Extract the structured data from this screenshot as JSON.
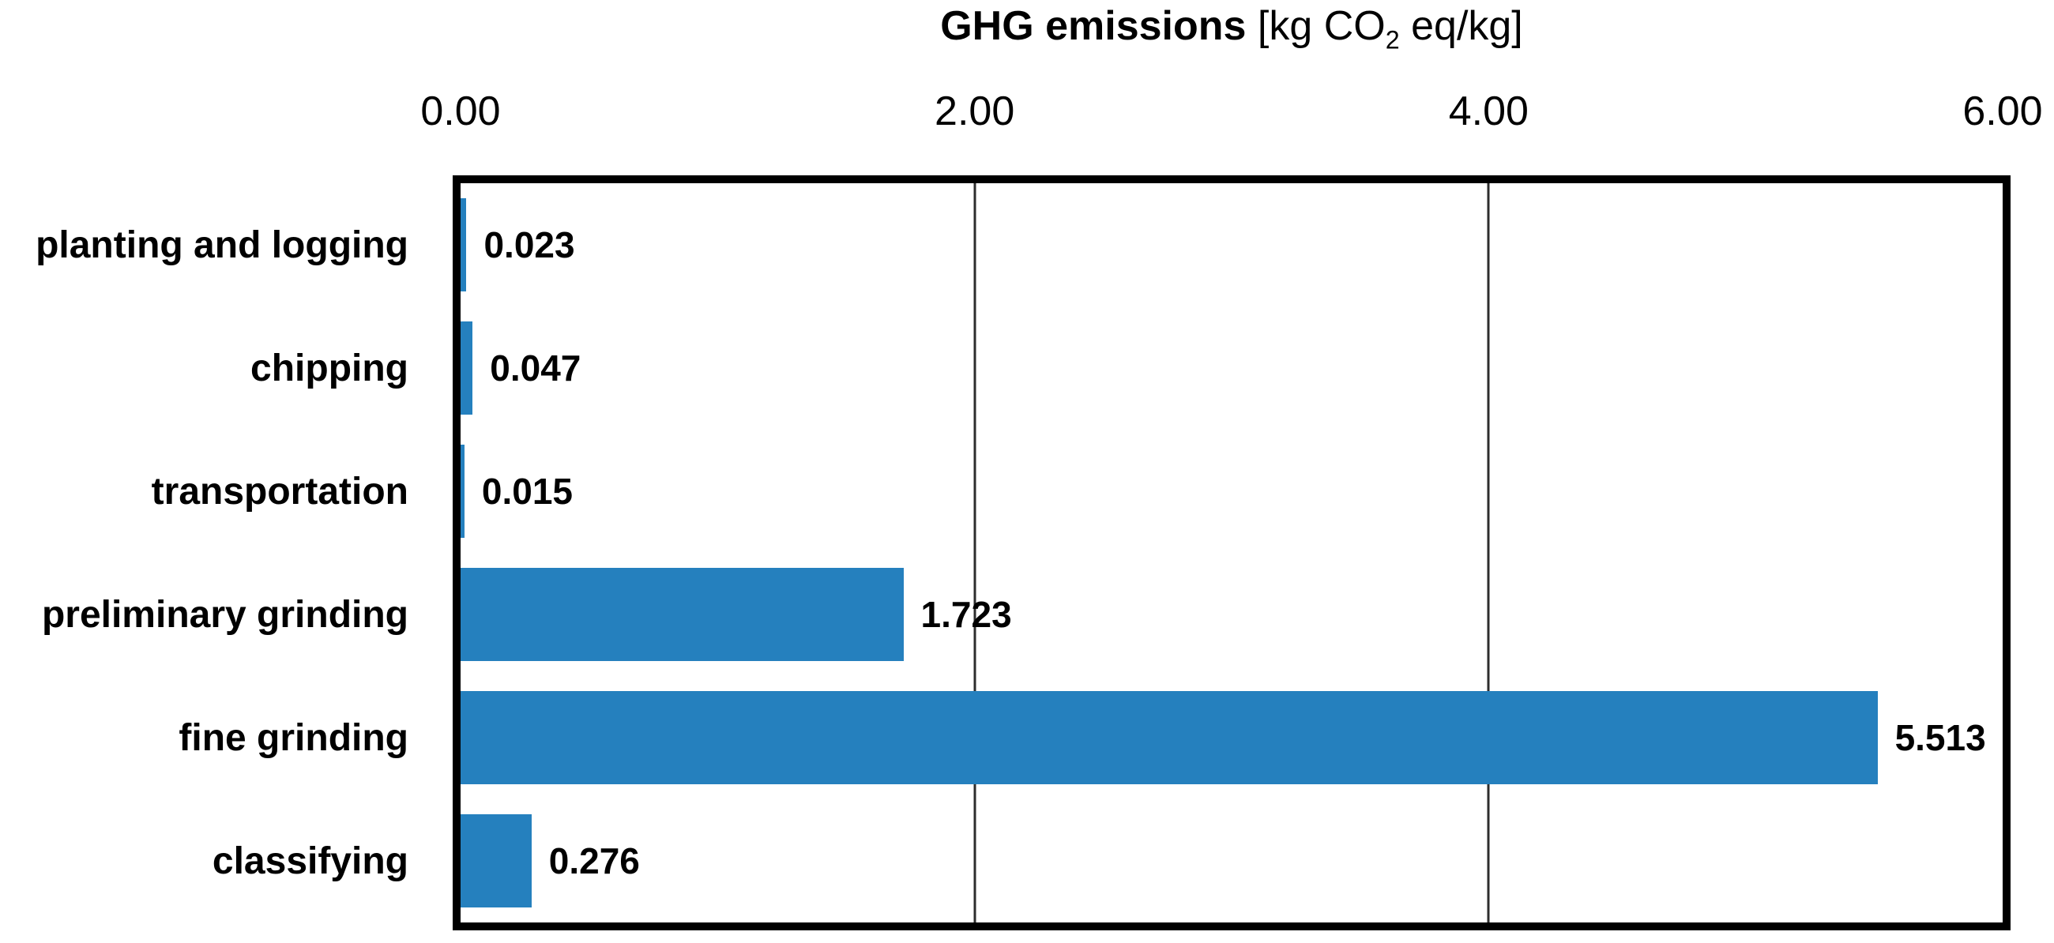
{
  "title": {
    "bold": "GHG emissions",
    "unit_pre": " [kg CO",
    "sub": "2",
    "unit_post": " eq/kg]",
    "full": "GHG emissions [kg CO2 eq/kg]"
  },
  "chart_data": {
    "type": "bar",
    "orientation": "horizontal",
    "title": "GHG emissions [kg CO2 eq/kg]",
    "xlabel": "GHG emissions [kg CO2 eq/kg]",
    "ylabel": "",
    "categories": [
      "planting and logging",
      "chipping",
      "transportation",
      "preliminary grinding",
      "fine grinding",
      "classifying"
    ],
    "values": [
      0.023,
      0.047,
      0.015,
      1.723,
      5.513,
      0.276
    ],
    "value_labels": [
      "0.023",
      "0.047",
      "0.015",
      "1.723",
      "5.513",
      "0.276"
    ],
    "xlim": [
      0,
      6
    ],
    "x_ticks": [
      "0.00",
      "2.00",
      "4.00",
      "6.00"
    ],
    "x_tick_values": [
      0,
      2,
      4,
      6
    ],
    "axis_position": "top",
    "grid": true,
    "gridline_values": [
      2,
      4
    ],
    "legend": false,
    "bar_color": "#2580BE",
    "grid_color": "#2D2D2D",
    "frame_color": "#000000",
    "text_color": "#000000",
    "background": "#FFFFFF"
  }
}
